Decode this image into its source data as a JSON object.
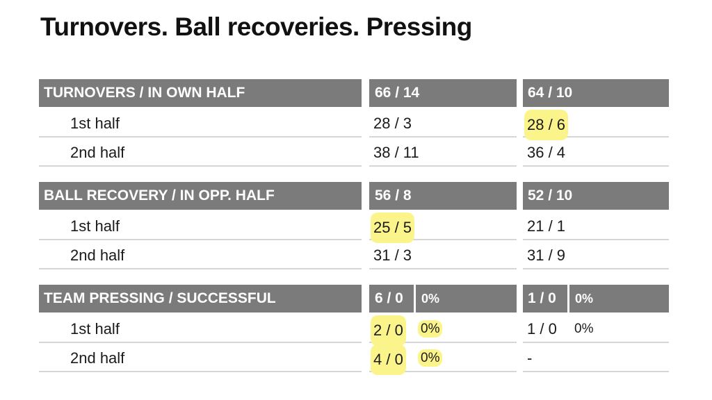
{
  "title": "Turnovers. Ball recoveries. Pressing",
  "sections": [
    {
      "header": {
        "label": "TURNOVERS / IN OWN HALF",
        "c1": "66 / 14",
        "c2": "64 / 10"
      },
      "rows": [
        {
          "label": "1st half",
          "c1": "28 / 3",
          "c2": "28 / 6"
        },
        {
          "label": "2nd half",
          "c1": "38 / 11",
          "c2": "36 / 4"
        }
      ]
    },
    {
      "header": {
        "label": "BALL RECOVERY / IN OPP. HALF",
        "c1": "56 / 8",
        "c2": "52 / 10"
      },
      "rows": [
        {
          "label": "1st half",
          "c1": "25 / 5",
          "c2": "21 / 1"
        },
        {
          "label": "2nd half",
          "c1": "31 / 3",
          "c2": "31 / 9"
        }
      ]
    },
    {
      "header": {
        "label": "TEAM PRESSING / SUCCESSFUL",
        "c1": "6 / 0",
        "c1_pct": "0%",
        "c2": "1 / 0",
        "c2_pct": "0%"
      },
      "rows": [
        {
          "label": "1st half",
          "c1": "2 / 0",
          "c1_pct": "0%",
          "c2": "1 / 0",
          "c2_pct": "0%"
        },
        {
          "label": "2nd half",
          "c1": "4 / 0",
          "c1_pct": "0%",
          "c2": "-"
        }
      ]
    }
  ],
  "highlight_color": "#fbf48a",
  "header_color": "#7b7b7b"
}
